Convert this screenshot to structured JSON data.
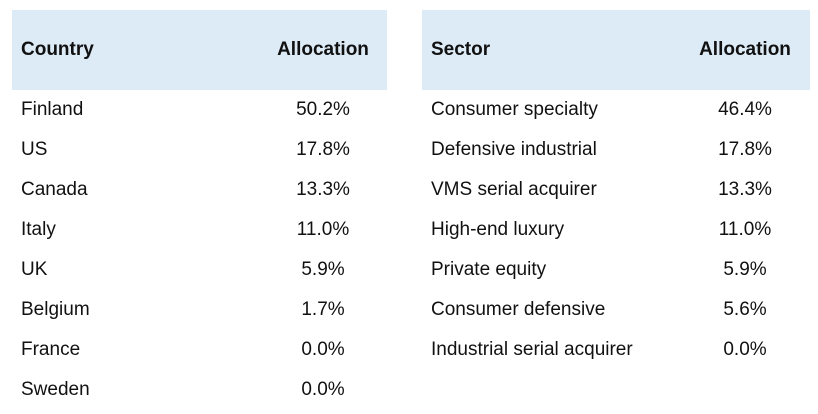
{
  "colors": {
    "header_bg": "#ddebf7",
    "text": "#111111",
    "background": "#ffffff"
  },
  "chart_data": [
    {
      "type": "table",
      "columns": [
        "Country",
        "Allocation"
      ],
      "rows": [
        [
          "Finland",
          "50.2%"
        ],
        [
          "US",
          "17.8%"
        ],
        [
          "Canada",
          "13.3%"
        ],
        [
          "Italy",
          "11.0%"
        ],
        [
          "UK",
          "5.9%"
        ],
        [
          "Belgium",
          "1.7%"
        ],
        [
          "France",
          "0.0%"
        ],
        [
          "Sweden",
          "0.0%"
        ]
      ]
    },
    {
      "type": "table",
      "columns": [
        "Sector",
        "Allocation"
      ],
      "rows": [
        [
          "Consumer specialty",
          "46.4%"
        ],
        [
          "Defensive industrial",
          "17.8%"
        ],
        [
          "VMS serial acquirer",
          "13.3%"
        ],
        [
          "High-end luxury",
          "11.0%"
        ],
        [
          "Private equity",
          "5.9%"
        ],
        [
          "Consumer defensive",
          "5.6%"
        ],
        [
          "Industrial serial acquirer",
          "0.0%"
        ]
      ]
    }
  ]
}
